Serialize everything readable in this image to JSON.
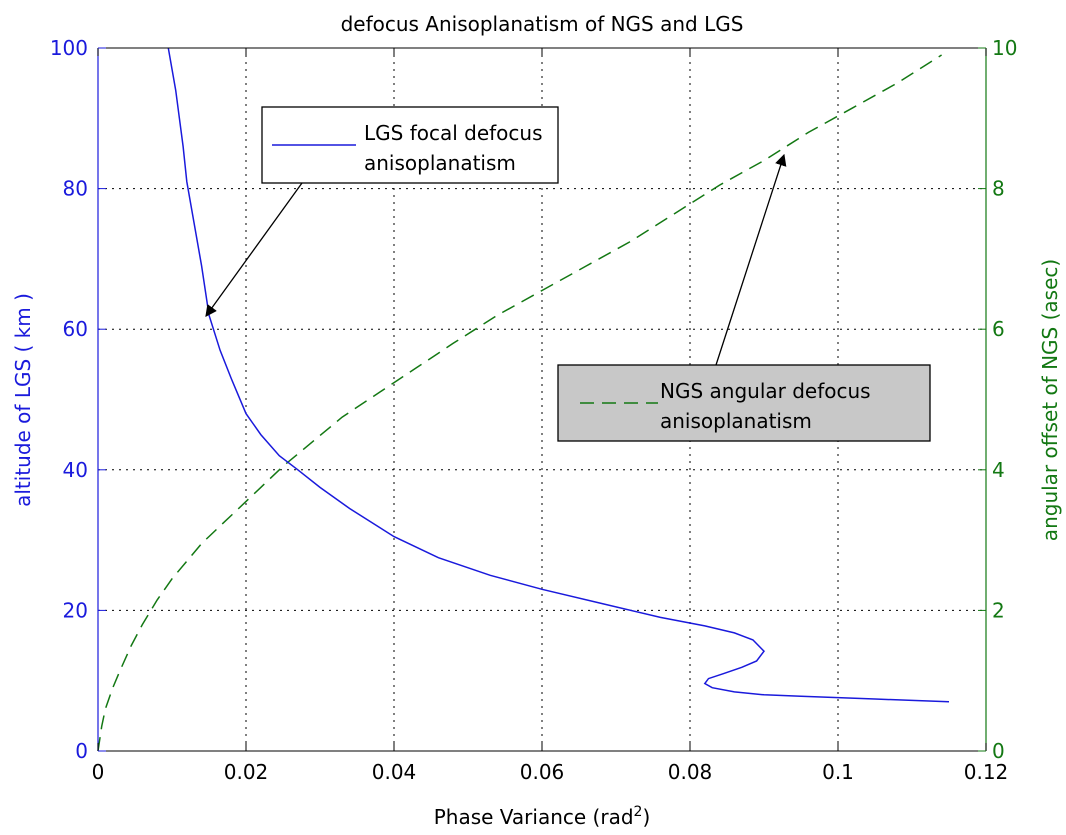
{
  "chart_data": {
    "type": "line",
    "title": "defocus Anisoplanatism of NGS and LGS",
    "xlabel_prefix": "Phase Variance (rad",
    "xlabel_sup": "2",
    "xlabel_suffix": ")",
    "ylabel_left": "altitude of LGS ( km )",
    "ylabel_right": "angular offset of NGS (asec)",
    "xlim": [
      0,
      0.12
    ],
    "ylim_left": [
      0,
      100
    ],
    "ylim_right": [
      0,
      10
    ],
    "grid": true,
    "x_ticks": [
      "0",
      "0.02",
      "0.04",
      "0.06",
      "0.08",
      "0.1",
      "0.12"
    ],
    "y_left_ticks": [
      "0",
      "20",
      "40",
      "60",
      "80",
      "100"
    ],
    "y_right_ticks": [
      "0",
      "2",
      "4",
      "6",
      "8",
      "10"
    ],
    "colors": {
      "lgs": "#1a1adc",
      "ngs": "#137813",
      "left_axis": "#1a1adc",
      "right_axis": "#137813"
    },
    "series": [
      {
        "name": "LGS focal defocus anisoplanatism",
        "axis": "left",
        "style": "solid",
        "x": [
          0.0095,
          0.01,
          0.0105,
          0.011,
          0.0115,
          0.012,
          0.013,
          0.014,
          0.015,
          0.0165,
          0.018,
          0.02,
          0.022,
          0.0245,
          0.027,
          0.03,
          0.034,
          0.04,
          0.046,
          0.053,
          0.06,
          0.068,
          0.076,
          0.082,
          0.086,
          0.0885,
          0.09,
          0.089,
          0.087,
          0.0845,
          0.0825,
          0.082,
          0.083,
          0.086,
          0.09,
          0.095,
          0.1,
          0.105,
          0.11,
          0.115
        ],
        "y": [
          100,
          97,
          94,
          90,
          86,
          81,
          75,
          69,
          62,
          57,
          53,
          48,
          45,
          42,
          40,
          37.5,
          34.5,
          30.5,
          27.5,
          25,
          23,
          21,
          19,
          17.8,
          16.8,
          15.8,
          14.2,
          12.8,
          11.9,
          11.0,
          10.3,
          9.6,
          9.0,
          8.4,
          8.0,
          7.8,
          7.6,
          7.4,
          7.2,
          7.0
        ]
      },
      {
        "name": "NGS angular defocus anisoplanatism",
        "axis": "right",
        "style": "dashed",
        "x": [
          0.0,
          0.0005,
          0.001,
          0.002,
          0.003,
          0.0045,
          0.006,
          0.008,
          0.01,
          0.012,
          0.014,
          0.0165,
          0.019,
          0.022,
          0.025,
          0.029,
          0.033,
          0.038,
          0.043,
          0.048,
          0.054,
          0.06,
          0.066,
          0.072,
          0.078,
          0.084,
          0.09,
          0.096,
          0.102,
          0.108,
          0.114
        ],
        "y": [
          0.0,
          0.35,
          0.6,
          0.9,
          1.15,
          1.5,
          1.8,
          2.15,
          2.45,
          2.7,
          2.95,
          3.2,
          3.45,
          3.75,
          4.05,
          4.4,
          4.75,
          5.1,
          5.45,
          5.8,
          6.2,
          6.55,
          6.9,
          7.25,
          7.65,
          8.05,
          8.4,
          8.8,
          9.15,
          9.5,
          9.9
        ]
      }
    ],
    "annotations": {
      "legend_lgs_line1": "LGS focal defocus",
      "legend_lgs_line2": "anisoplanatism",
      "legend_ngs_line1": "NGS angular defocus",
      "legend_ngs_line2": "anisoplanatism"
    }
  }
}
